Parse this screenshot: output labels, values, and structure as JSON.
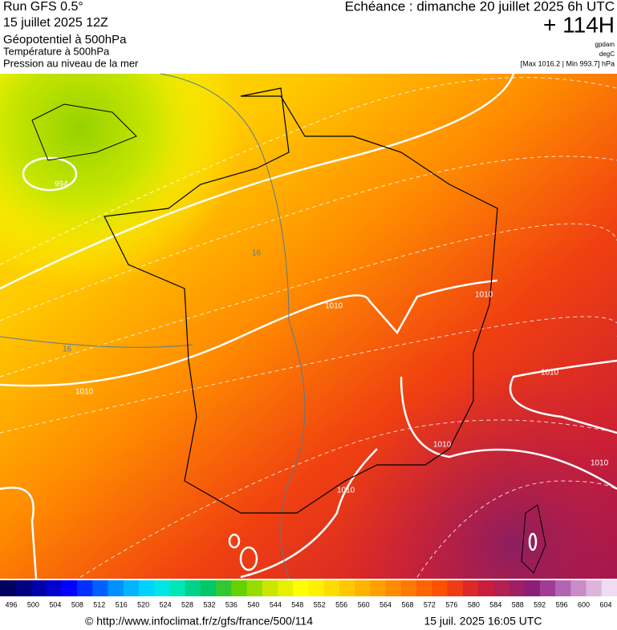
{
  "header": {
    "lines": [
      "Run GFS 0.5°",
      "15 juillet 2025 12Z",
      "Géopotentiel à 500hPa",
      "Température à 500hPa",
      "Pression au niveau de la mer"
    ],
    "valid": "Echéance : dimanche 20 juillet 2025 6h UTC",
    "lead": "+ 114H",
    "units": [
      "gpdam",
      "degC",
      "[Max 1016.2 | Min 993.7] hPa"
    ]
  },
  "map": {
    "contour_labels": [
      "994",
      "1010",
      "1010",
      "1010",
      "1010",
      "1010",
      "1010",
      "1010",
      "16",
      "16"
    ]
  },
  "colorbar": {
    "labels": [
      496,
      500,
      504,
      508,
      512,
      516,
      520,
      524,
      528,
      532,
      536,
      540,
      544,
      548,
      552,
      556,
      560,
      564,
      568,
      572,
      576,
      580,
      584,
      588,
      592,
      596,
      600,
      604
    ],
    "colors": [
      "#000060",
      "#000080",
      "#0000a8",
      "#0000d0",
      "#0000ff",
      "#0030ff",
      "#0060ff",
      "#0090ff",
      "#00b4ff",
      "#00d2ff",
      "#00e6e6",
      "#00e6b4",
      "#00d28c",
      "#00c864",
      "#32c832",
      "#64d200",
      "#96dc00",
      "#c8e600",
      "#e6f000",
      "#ffff00",
      "#fff000",
      "#ffdc00",
      "#ffc800",
      "#ffb400",
      "#ffa000",
      "#ff8c00",
      "#ff7800",
      "#ff6400",
      "#ff5000",
      "#f03c14",
      "#dc2828",
      "#c81e3c",
      "#b41e50",
      "#a01e64",
      "#8c1e78",
      "#a03c96",
      "#b464b4",
      "#c88cc8",
      "#dcb4dc",
      "#f0dcf0"
    ]
  },
  "footer": {
    "url": "© http://www.infoclimat.fr/z/gfs/france/500/114",
    "time": "15 juil. 2025 16:05 UTC"
  }
}
